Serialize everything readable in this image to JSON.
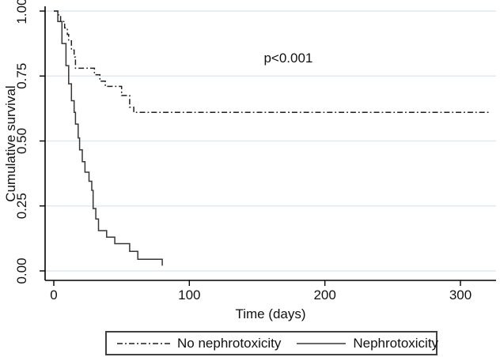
{
  "chart_data": {
    "type": "line",
    "subtype": "kaplan-meier-step",
    "xlabel": "Time (days)",
    "ylabel": "Cumulative survival",
    "xlim": [
      0,
      327
    ],
    "ylim": [
      0.0,
      1.0
    ],
    "grid": "horizontal-only",
    "legend_position": "bottom-center-boxed",
    "x_ticks": [
      {
        "value": 0,
        "label": "0"
      },
      {
        "value": 100,
        "label": "100"
      },
      {
        "value": 200,
        "label": "200"
      },
      {
        "value": 300,
        "label": "300"
      }
    ],
    "y_ticks": [
      {
        "value": 0.0,
        "label": "0.00"
      },
      {
        "value": 0.25,
        "label": "0.25"
      },
      {
        "value": 0.5,
        "label": "0.50"
      },
      {
        "value": 0.75,
        "label": "0.75"
      },
      {
        "value": 1.0,
        "label": "1.00"
      }
    ],
    "annotation": {
      "text": "p<0.001",
      "day": 173,
      "survival": 0.82
    },
    "series": [
      {
        "name": "No nephrotoxicity",
        "line_style": "dash-dot",
        "color": "#1f1f1f",
        "points": [
          [
            0,
            1.0
          ],
          [
            3,
            0.985
          ],
          [
            5,
            0.96
          ],
          [
            8,
            0.935
          ],
          [
            10,
            0.91
          ],
          [
            11,
            0.885
          ],
          [
            13,
            0.85
          ],
          [
            15,
            0.823
          ],
          [
            16,
            0.78
          ],
          [
            30,
            0.755
          ],
          [
            34,
            0.73
          ],
          [
            38,
            0.71
          ],
          [
            50,
            0.675
          ],
          [
            56,
            0.63
          ],
          [
            59,
            0.61
          ],
          [
            322,
            0.61
          ]
        ]
      },
      {
        "name": "Nephrotoxicity",
        "line_style": "solid",
        "color": "#363636",
        "points": [
          [
            0,
            1.0
          ],
          [
            3,
            0.96
          ],
          [
            6,
            0.875
          ],
          [
            9,
            0.79
          ],
          [
            11,
            0.72
          ],
          [
            13,
            0.655
          ],
          [
            15,
            0.61
          ],
          [
            16,
            0.565
          ],
          [
            18,
            0.512
          ],
          [
            19,
            0.466
          ],
          [
            21,
            0.42
          ],
          [
            23,
            0.38
          ],
          [
            26,
            0.345
          ],
          [
            28,
            0.31
          ],
          [
            29,
            0.24
          ],
          [
            31,
            0.2
          ],
          [
            33,
            0.155
          ],
          [
            39,
            0.13
          ],
          [
            45,
            0.105
          ],
          [
            56,
            0.075
          ],
          [
            62,
            0.045
          ],
          [
            80,
            0.02
          ]
        ]
      }
    ]
  },
  "colors": {
    "background": "#ffffff",
    "gridline": "#dfeaf2",
    "axis": "#000000",
    "text": "#111111",
    "legend_border": "#404040"
  }
}
